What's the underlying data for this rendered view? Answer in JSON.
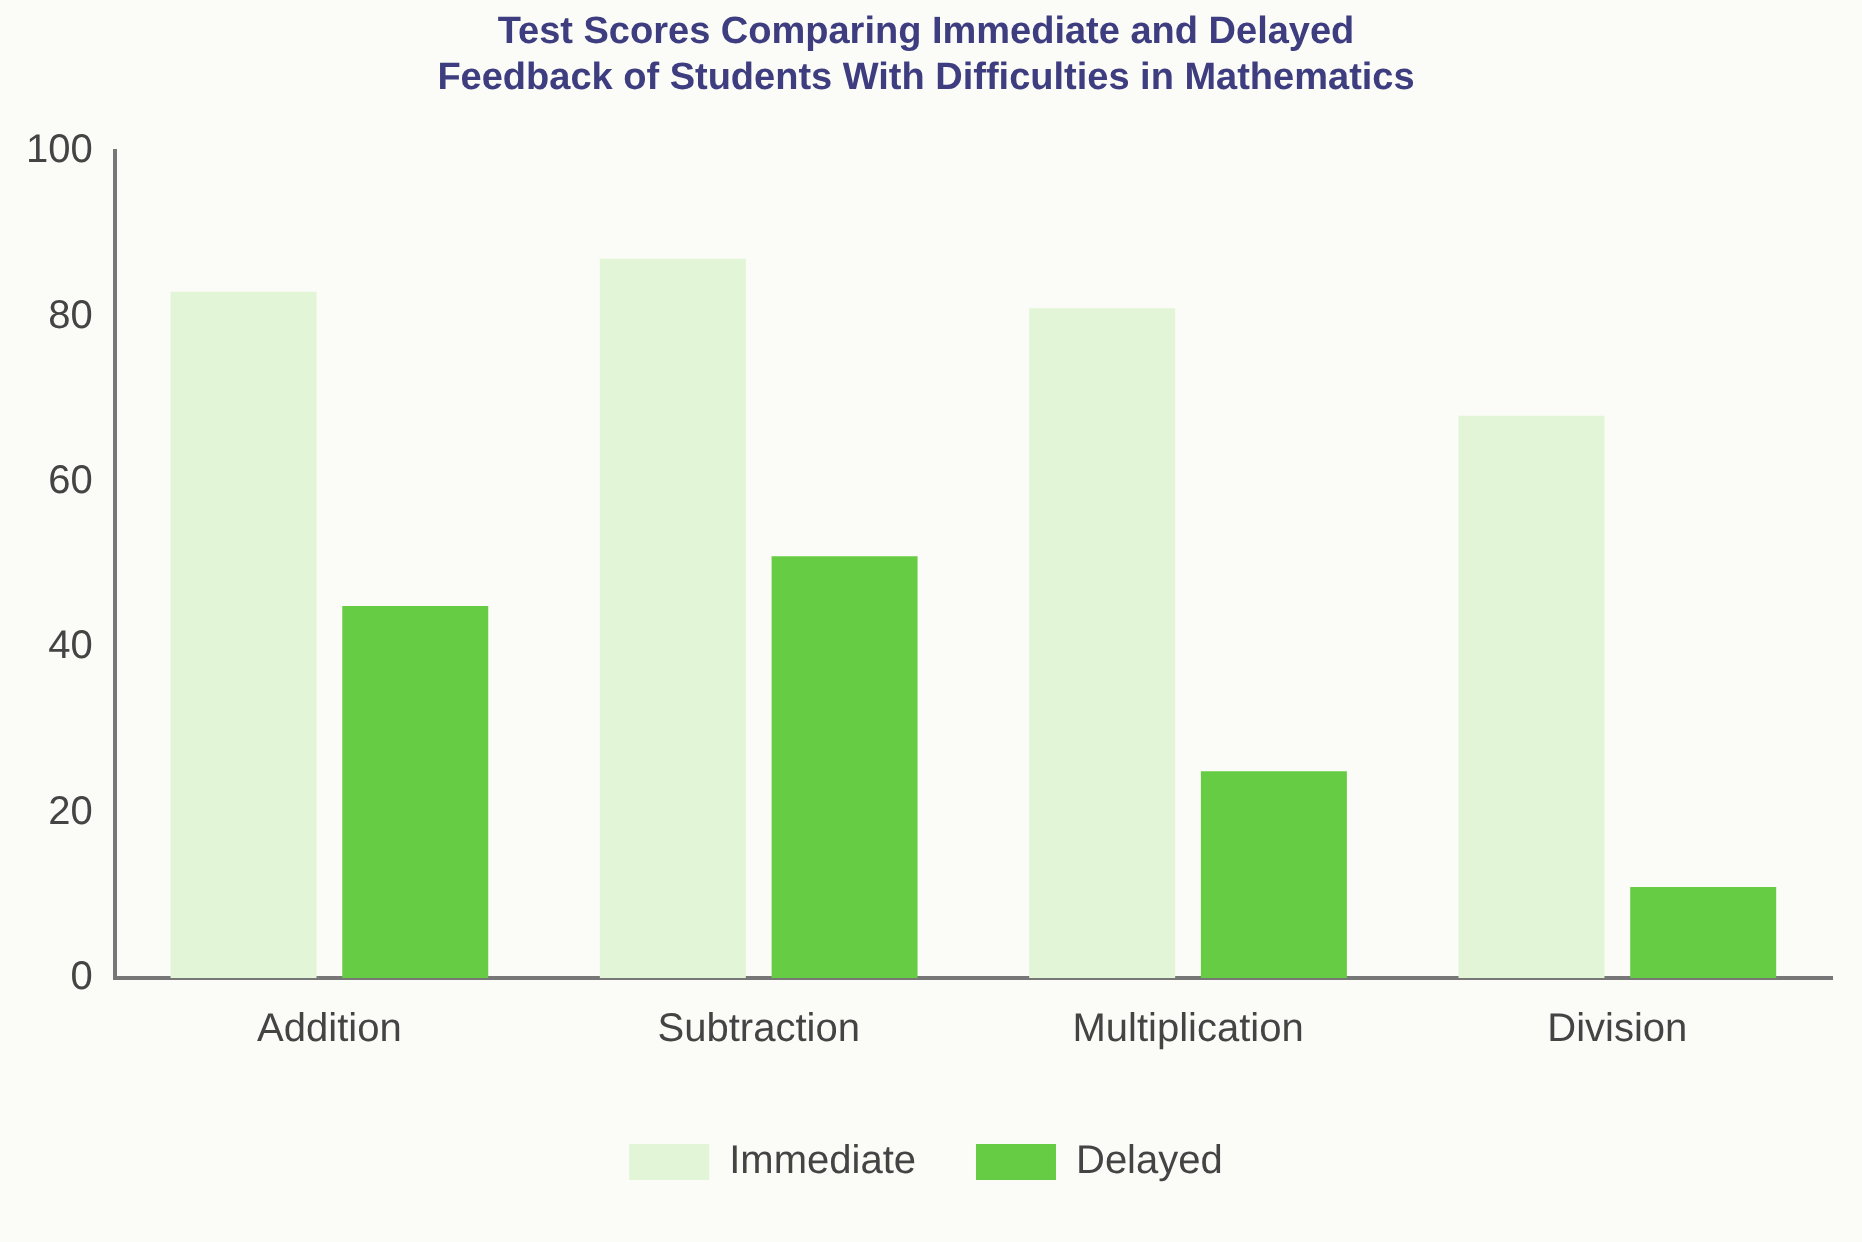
{
  "chart_data": {
    "type": "bar",
    "title": "Test Scores Comparing Immediate and Delayed\nFeedback of Students With Difficulties in Mathematics",
    "categories": [
      "Addition",
      "Subtraction",
      "Multiplication",
      "Division"
    ],
    "series": [
      {
        "name": "Immediate",
        "color": "#e2f5d6",
        "values": [
          83,
          87,
          81,
          68
        ]
      },
      {
        "name": "Delayed",
        "color": "#66cc44",
        "values": [
          45,
          51,
          25,
          11
        ]
      }
    ],
    "ylim": [
      0,
      100
    ],
    "yticks": [
      0,
      20,
      40,
      60,
      80,
      100
    ],
    "grid": false,
    "legend": "bottom"
  }
}
